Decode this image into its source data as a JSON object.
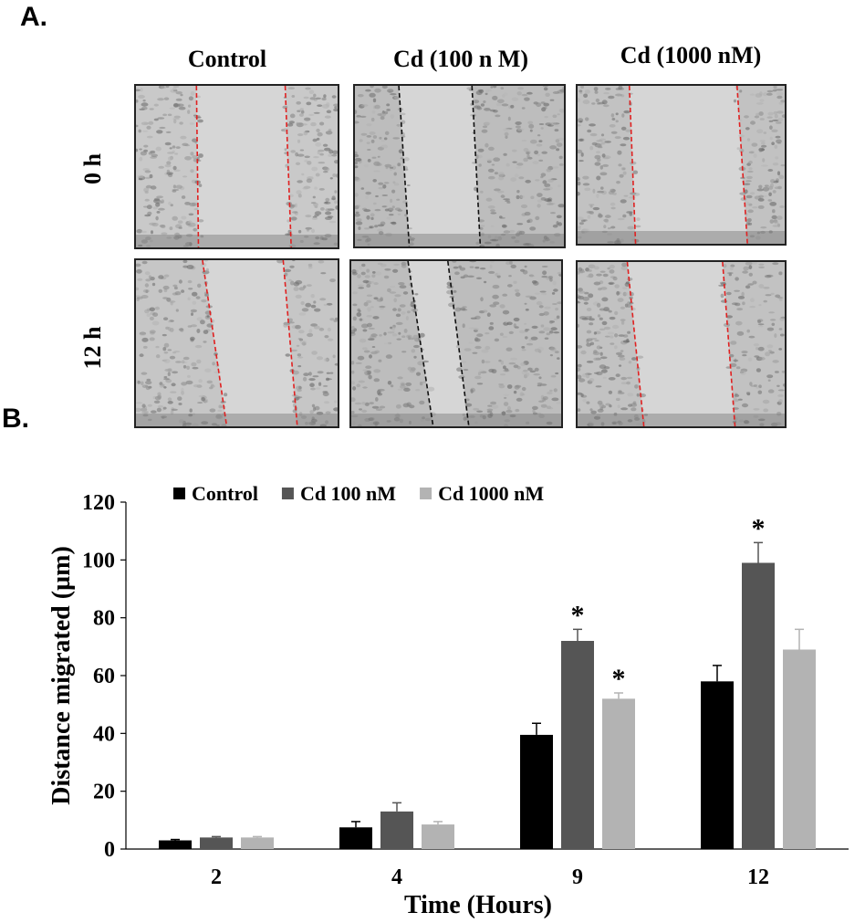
{
  "panel_a": {
    "letter": "A.",
    "columns": [
      "Control",
      "Cd (100 n M)",
      "Cd (1000 nM)"
    ],
    "rows": [
      "0 h",
      "12 h"
    ],
    "line_colors": [
      "#e02020",
      "#111111",
      "#e02020"
    ]
  },
  "panel_b": {
    "letter": "B."
  },
  "chart_data": {
    "type": "bar",
    "categories": [
      "2",
      "4",
      "9",
      "12"
    ],
    "series": [
      {
        "name": "Control",
        "color": "#000000",
        "values": [
          3,
          7.5,
          39.5,
          58
        ],
        "errors": [
          0.3,
          2,
          4,
          5.5
        ],
        "significant": [
          false,
          false,
          false,
          false
        ]
      },
      {
        "name": "Cd 100 nM",
        "color": "#555555",
        "values": [
          4,
          13,
          72,
          99
        ],
        "errors": [
          0.3,
          3,
          4,
          7
        ],
        "significant": [
          false,
          false,
          true,
          true
        ]
      },
      {
        "name": "Cd 1000 nM",
        "color": "#b3b3b3",
        "values": [
          4,
          8.5,
          52,
          69
        ],
        "errors": [
          0.3,
          1,
          2,
          7
        ],
        "significant": [
          false,
          false,
          true,
          false
        ]
      }
    ],
    "ylim": [
      0,
      120
    ],
    "yticks": [
      "0",
      "20",
      "40",
      "60",
      "80",
      "100",
      "120"
    ],
    "xlabel": "Time (Hours)",
    "ylabel": "Distance migrated (µm)",
    "significance_marker": "*",
    "legend_position": "top"
  }
}
